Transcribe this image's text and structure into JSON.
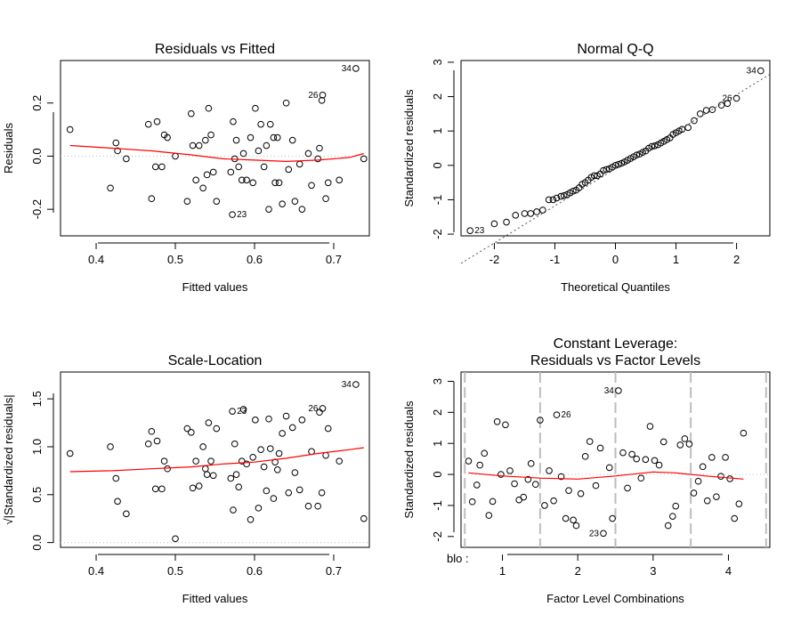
{
  "chart_data": [
    {
      "type": "scatter",
      "title": "Residuals vs Fitted",
      "xlabel": "Fitted values",
      "ylabel": "Residuals",
      "xticks": [
        "0.4",
        "0.5",
        "0.6",
        "0.7"
      ],
      "yticks": [
        "-0.2",
        "0.0",
        "0.2"
      ],
      "xlim": [
        0.355,
        0.745
      ],
      "ylim": [
        -0.3,
        0.36
      ],
      "points": [
        [
          0.367,
          0.1
        ],
        [
          0.418,
          -0.12
        ],
        [
          0.425,
          0.05
        ],
        [
          0.427,
          0.02
        ],
        [
          0.438,
          -0.01
        ],
        [
          0.466,
          0.12
        ],
        [
          0.47,
          -0.16
        ],
        [
          0.475,
          -0.04
        ],
        [
          0.477,
          0.13
        ],
        [
          0.483,
          -0.04
        ],
        [
          0.486,
          0.08
        ],
        [
          0.49,
          0.07
        ],
        [
          0.5,
          0.0
        ],
        [
          0.515,
          -0.17
        ],
        [
          0.52,
          0.16
        ],
        [
          0.522,
          0.04
        ],
        [
          0.526,
          -0.09
        ],
        [
          0.53,
          0.04
        ],
        [
          0.535,
          -0.12
        ],
        [
          0.538,
          0.06
        ],
        [
          0.54,
          -0.07
        ],
        [
          0.542,
          0.18
        ],
        [
          0.545,
          0.08
        ],
        [
          0.548,
          -0.06
        ],
        [
          0.552,
          -0.17
        ],
        [
          0.57,
          -0.06
        ],
        [
          0.572,
          -0.22
        ],
        [
          0.573,
          0.13
        ],
        [
          0.575,
          -0.01
        ],
        [
          0.577,
          0.06
        ],
        [
          0.58,
          -0.04
        ],
        [
          0.584,
          -0.09
        ],
        [
          0.586,
          0.01
        ],
        [
          0.59,
          -0.09
        ],
        [
          0.595,
          0.07
        ],
        [
          0.598,
          -0.1
        ],
        [
          0.601,
          0.18
        ],
        [
          0.605,
          0.02
        ],
        [
          0.608,
          0.12
        ],
        [
          0.612,
          -0.04
        ],
        [
          0.615,
          0.04
        ],
        [
          0.618,
          -0.2
        ],
        [
          0.62,
          0.12
        ],
        [
          0.624,
          0.07
        ],
        [
          0.626,
          -0.1
        ],
        [
          0.629,
          0.07
        ],
        [
          0.631,
          -0.1
        ],
        [
          0.635,
          -0.18
        ],
        [
          0.64,
          0.2
        ],
        [
          0.643,
          -0.05
        ],
        [
          0.648,
          0.06
        ],
        [
          0.651,
          -0.17
        ],
        [
          0.657,
          -0.03
        ],
        [
          0.66,
          -0.2
        ],
        [
          0.668,
          0.01
        ],
        [
          0.672,
          -0.11
        ],
        [
          0.68,
          -0.01
        ],
        [
          0.682,
          0.03
        ],
        [
          0.685,
          0.21
        ],
        [
          0.686,
          0.23
        ],
        [
          0.69,
          -0.16
        ],
        [
          0.693,
          -0.1
        ],
        [
          0.707,
          -0.09
        ],
        [
          0.728,
          0.33
        ],
        [
          0.738,
          -0.01
        ]
      ],
      "labels": [
        {
          "i": 63,
          "text": "34",
          "side": "left"
        },
        {
          "i": 59,
          "text": "26",
          "side": "left"
        },
        {
          "i": 26,
          "text": "23",
          "side": "right"
        }
      ],
      "smooth": [
        [
          0.367,
          0.04
        ],
        [
          0.42,
          0.03
        ],
        [
          0.47,
          0.02
        ],
        [
          0.52,
          0.005
        ],
        [
          0.56,
          -0.01
        ],
        [
          0.6,
          -0.015
        ],
        [
          0.64,
          -0.02
        ],
        [
          0.68,
          -0.015
        ],
        [
          0.72,
          -0.005
        ],
        [
          0.738,
          0.01
        ]
      ]
    },
    {
      "type": "scatter",
      "title": "Normal Q-Q",
      "xlabel": "Theoretical Quantiles",
      "ylabel": "Standardized residuals",
      "xticks": [
        "-2",
        "-1",
        "0",
        "1",
        "2"
      ],
      "yticks": [
        "-2",
        "-1",
        "0",
        "1",
        "2",
        "3"
      ],
      "xlim": [
        -2.55,
        2.55
      ],
      "ylim": [
        -2.05,
        3.05
      ],
      "points": [
        [
          -2.4,
          -1.9
        ],
        [
          -2.0,
          -1.7
        ],
        [
          -1.8,
          -1.65
        ],
        [
          -1.65,
          -1.45
        ],
        [
          -1.5,
          -1.4
        ],
        [
          -1.4,
          -1.4
        ],
        [
          -1.3,
          -1.35
        ],
        [
          -1.2,
          -1.3
        ],
        [
          -1.1,
          -1.0
        ],
        [
          -1.03,
          -1.0
        ],
        [
          -0.97,
          -0.95
        ],
        [
          -0.9,
          -0.9
        ],
        [
          -0.85,
          -0.88
        ],
        [
          -0.8,
          -0.85
        ],
        [
          -0.75,
          -0.8
        ],
        [
          -0.7,
          -0.75
        ],
        [
          -0.65,
          -0.72
        ],
        [
          -0.6,
          -0.65
        ],
        [
          -0.55,
          -0.55
        ],
        [
          -0.5,
          -0.5
        ],
        [
          -0.45,
          -0.43
        ],
        [
          -0.4,
          -0.35
        ],
        [
          -0.35,
          -0.3
        ],
        [
          -0.3,
          -0.3
        ],
        [
          -0.25,
          -0.25
        ],
        [
          -0.2,
          -0.15
        ],
        [
          -0.15,
          -0.12
        ],
        [
          -0.1,
          -0.1
        ],
        [
          -0.05,
          -0.05
        ],
        [
          0.0,
          0.0
        ],
        [
          0.05,
          0.03
        ],
        [
          0.1,
          0.06
        ],
        [
          0.15,
          0.1
        ],
        [
          0.2,
          0.15
        ],
        [
          0.25,
          0.2
        ],
        [
          0.3,
          0.25
        ],
        [
          0.35,
          0.3
        ],
        [
          0.4,
          0.33
        ],
        [
          0.45,
          0.38
        ],
        [
          0.5,
          0.42
        ],
        [
          0.55,
          0.5
        ],
        [
          0.6,
          0.55
        ],
        [
          0.65,
          0.57
        ],
        [
          0.7,
          0.6
        ],
        [
          0.75,
          0.65
        ],
        [
          0.8,
          0.7
        ],
        [
          0.85,
          0.75
        ],
        [
          0.9,
          0.8
        ],
        [
          0.95,
          0.9
        ],
        [
          1.0,
          0.95
        ],
        [
          1.05,
          1.0
        ],
        [
          1.1,
          1.05
        ],
        [
          1.2,
          1.1
        ],
        [
          1.3,
          1.3
        ],
        [
          1.4,
          1.5
        ],
        [
          1.5,
          1.6
        ],
        [
          1.6,
          1.62
        ],
        [
          1.75,
          1.75
        ],
        [
          1.85,
          1.8
        ],
        [
          2.0,
          1.95
        ],
        [
          2.4,
          2.75
        ]
      ],
      "labels": [
        {
          "i": 60,
          "text": "34",
          "side": "left"
        },
        {
          "i": 59,
          "text": "26",
          "side": "left"
        },
        {
          "i": 0,
          "text": "23",
          "side": "right"
        }
      ],
      "refline": [
        [
          -2.55,
          -2.85
        ],
        [
          2.55,
          2.65
        ]
      ]
    },
    {
      "type": "scatter",
      "title": "Scale-Location",
      "xlabel": "Fitted values",
      "ylabel": "√|Standardized residuals|",
      "xticks": [
        "0.4",
        "0.5",
        "0.6",
        "0.7"
      ],
      "yticks": [
        "0.0",
        "0.5",
        "1.0",
        "1.5"
      ],
      "xlim": [
        0.355,
        0.745
      ],
      "ylim": [
        -0.05,
        1.78
      ],
      "points": [
        [
          0.367,
          0.93
        ],
        [
          0.418,
          1.0
        ],
        [
          0.425,
          0.67
        ],
        [
          0.427,
          0.43
        ],
        [
          0.438,
          0.3
        ],
        [
          0.466,
          1.03
        ],
        [
          0.47,
          1.16
        ],
        [
          0.475,
          0.56
        ],
        [
          0.477,
          1.06
        ],
        [
          0.483,
          0.56
        ],
        [
          0.486,
          0.85
        ],
        [
          0.49,
          0.77
        ],
        [
          0.5,
          0.04
        ],
        [
          0.515,
          1.19
        ],
        [
          0.52,
          1.15
        ],
        [
          0.522,
          0.57
        ],
        [
          0.526,
          0.85
        ],
        [
          0.53,
          0.59
        ],
        [
          0.535,
          1.0
        ],
        [
          0.538,
          0.77
        ],
        [
          0.54,
          0.71
        ],
        [
          0.542,
          1.25
        ],
        [
          0.545,
          0.85
        ],
        [
          0.548,
          0.7
        ],
        [
          0.552,
          1.19
        ],
        [
          0.57,
          0.67
        ],
        [
          0.572,
          1.37
        ],
        [
          0.573,
          0.34
        ],
        [
          0.575,
          1.03
        ],
        [
          0.577,
          0.71
        ],
        [
          0.58,
          0.58
        ],
        [
          0.584,
          0.85
        ],
        [
          0.586,
          1.39
        ],
        [
          0.59,
          0.82
        ],
        [
          0.595,
          0.24
        ],
        [
          0.598,
          0.89
        ],
        [
          0.601,
          1.28
        ],
        [
          0.605,
          0.36
        ],
        [
          0.608,
          0.97
        ],
        [
          0.612,
          0.79
        ],
        [
          0.615,
          0.54
        ],
        [
          0.618,
          1.29
        ],
        [
          0.62,
          0.98
        ],
        [
          0.624,
          0.46
        ],
        [
          0.626,
          0.84
        ],
        [
          0.629,
          0.76
        ],
        [
          0.631,
          0.93
        ],
        [
          0.635,
          1.14
        ],
        [
          0.64,
          1.32
        ],
        [
          0.643,
          0.52
        ],
        [
          0.648,
          1.2
        ],
        [
          0.651,
          0.73
        ],
        [
          0.657,
          0.55
        ],
        [
          0.66,
          1.28
        ],
        [
          0.668,
          0.38
        ],
        [
          0.672,
          0.95
        ],
        [
          0.68,
          0.38
        ],
        [
          0.682,
          1.36
        ],
        [
          0.685,
          0.52
        ],
        [
          0.686,
          1.4
        ],
        [
          0.69,
          0.91
        ],
        [
          0.693,
          1.19
        ],
        [
          0.707,
          0.85
        ],
        [
          0.728,
          1.65
        ],
        [
          0.738,
          0.25
        ]
      ],
      "labels": [
        {
          "i": 63,
          "text": "34",
          "side": "left"
        },
        {
          "i": 59,
          "text": "26",
          "side": "left"
        },
        {
          "i": 26,
          "text": "23",
          "side": "right"
        }
      ],
      "smooth": [
        [
          0.367,
          0.74
        ],
        [
          0.42,
          0.75
        ],
        [
          0.47,
          0.77
        ],
        [
          0.52,
          0.79
        ],
        [
          0.56,
          0.82
        ],
        [
          0.6,
          0.84
        ],
        [
          0.64,
          0.88
        ],
        [
          0.68,
          0.93
        ],
        [
          0.72,
          0.97
        ],
        [
          0.738,
          0.99
        ]
      ]
    },
    {
      "type": "scatter",
      "title": "Constant Leverage:",
      "subtitle": "Residuals vs Factor Levels",
      "xlabel": "Factor Level Combinations",
      "ylabel": "Standardized residuals",
      "factor_label": "blo :",
      "xticks": [
        "1",
        "2",
        "3",
        "4"
      ],
      "yticks": [
        "-2",
        "-1",
        "0",
        "1",
        "2",
        "3"
      ],
      "xlim": [
        0.45,
        4.55
      ],
      "ylim": [
        -2.35,
        3.3
      ],
      "level_lines": [
        0.5,
        1.5,
        2.5,
        3.5,
        4.5
      ],
      "points": [
        [
          0.55,
          0.43
        ],
        [
          0.6,
          -0.88
        ],
        [
          0.66,
          -0.34
        ],
        [
          0.7,
          0.3
        ],
        [
          0.76,
          0.68
        ],
        [
          0.82,
          -1.32
        ],
        [
          0.87,
          -0.87
        ],
        [
          0.93,
          1.7
        ],
        [
          0.98,
          0.0
        ],
        [
          1.04,
          1.6
        ],
        [
          1.1,
          0.12
        ],
        [
          1.16,
          -0.3
        ],
        [
          1.22,
          -0.82
        ],
        [
          1.28,
          -0.73
        ],
        [
          1.34,
          -0.16
        ],
        [
          1.38,
          0.35
        ],
        [
          1.44,
          -0.32
        ],
        [
          1.5,
          1.75
        ],
        [
          1.56,
          -1.0
        ],
        [
          1.62,
          0.12
        ],
        [
          1.68,
          -0.85
        ],
        [
          1.72,
          1.92
        ],
        [
          1.78,
          -0.07
        ],
        [
          1.84,
          -1.42
        ],
        [
          1.88,
          -0.52
        ],
        [
          1.94,
          -1.47
        ],
        [
          1.98,
          -1.65
        ],
        [
          2.04,
          -0.62
        ],
        [
          2.1,
          0.58
        ],
        [
          2.16,
          1.06
        ],
        [
          2.24,
          -0.36
        ],
        [
          2.3,
          0.85
        ],
        [
          2.34,
          -1.9
        ],
        [
          2.42,
          0.22
        ],
        [
          2.46,
          -1.42
        ],
        [
          2.54,
          2.7
        ],
        [
          2.6,
          0.7
        ],
        [
          2.66,
          -0.44
        ],
        [
          2.72,
          0.65
        ],
        [
          2.78,
          0.5
        ],
        [
          2.84,
          -0.12
        ],
        [
          2.9,
          0.48
        ],
        [
          2.96,
          1.55
        ],
        [
          3.02,
          0.45
        ],
        [
          3.08,
          0.3
        ],
        [
          3.14,
          1.05
        ],
        [
          3.2,
          -1.65
        ],
        [
          3.26,
          -1.35
        ],
        [
          3.3,
          -1.02
        ],
        [
          3.36,
          0.95
        ],
        [
          3.42,
          1.15
        ],
        [
          3.48,
          0.98
        ],
        [
          3.54,
          -0.6
        ],
        [
          3.6,
          -0.22
        ],
        [
          3.66,
          0.25
        ],
        [
          3.72,
          -0.85
        ],
        [
          3.78,
          0.55
        ],
        [
          3.84,
          -0.72
        ],
        [
          3.9,
          -0.06
        ],
        [
          3.96,
          0.55
        ],
        [
          4.02,
          -0.14
        ],
        [
          4.08,
          -1.42
        ],
        [
          4.14,
          -0.95
        ],
        [
          4.2,
          1.33
        ]
      ],
      "labels": [
        {
          "i": 35,
          "text": "34",
          "side": "left"
        },
        {
          "i": 21,
          "text": "26",
          "side": "right"
        },
        {
          "i": 32,
          "text": "23",
          "side": "left"
        }
      ],
      "smooth": [
        [
          0.55,
          0.05
        ],
        [
          1.0,
          -0.05
        ],
        [
          1.5,
          -0.12
        ],
        [
          2.0,
          -0.15
        ],
        [
          2.5,
          -0.05
        ],
        [
          3.0,
          0.08
        ],
        [
          3.3,
          0.05
        ],
        [
          3.7,
          -0.05
        ],
        [
          4.2,
          -0.15
        ]
      ]
    }
  ]
}
